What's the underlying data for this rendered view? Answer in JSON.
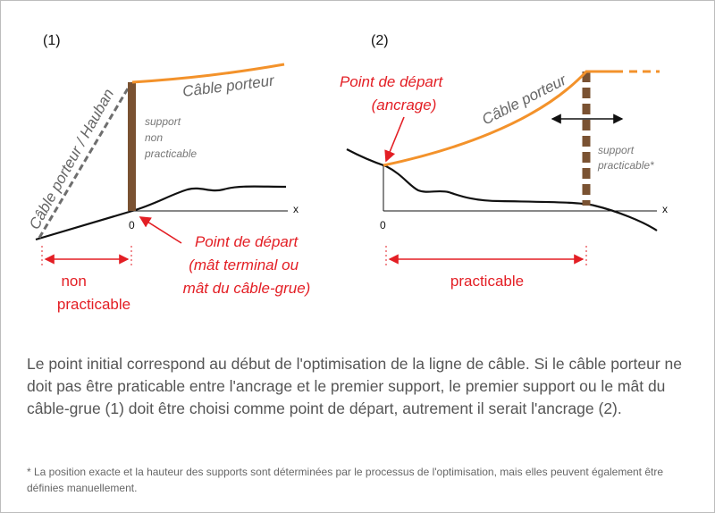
{
  "colors": {
    "cable": "#f3922b",
    "support": "#7a5232",
    "ground": "#111111",
    "accent_red": "#e31e24",
    "dashed_gray": "#6e6e6e",
    "text_gray": "#555555",
    "dim_text": "#777777"
  },
  "panel1": {
    "label": "(1)",
    "cable_label": "Câble porteur",
    "guy_label": "Câble porteur / Hauban",
    "support_label": [
      "support",
      "non",
      "practicable"
    ],
    "axis_x": "x",
    "axis_zero": "0",
    "start_label": [
      "Point de départ",
      "(mât terminal ou",
      "mât du câble-grue)"
    ],
    "range_label": [
      "non",
      "practicable"
    ]
  },
  "panel2": {
    "label": "(2)",
    "cable_label": "Câble porteur",
    "start_label": [
      "Point de départ",
      "(ancrage)"
    ],
    "support_label": [
      "support",
      "practicable*"
    ],
    "axis_x": "x",
    "axis_zero": "0",
    "range_label": "practicable"
  },
  "caption": "Le point initial correspond au début de l'optimisation de la ligne de câble. Si le câble porteur ne doit pas être praticable entre l'ancrage et le premier support, le premier support ou le mât du câble-grue (1) doit être choisi comme point de départ, autrement il serait l'ancrage (2).",
  "footnote": "* La position exacte et la hauteur des supports sont déterminées par le processus de l'optimisation, mais elles peuvent également être définies manuellement."
}
